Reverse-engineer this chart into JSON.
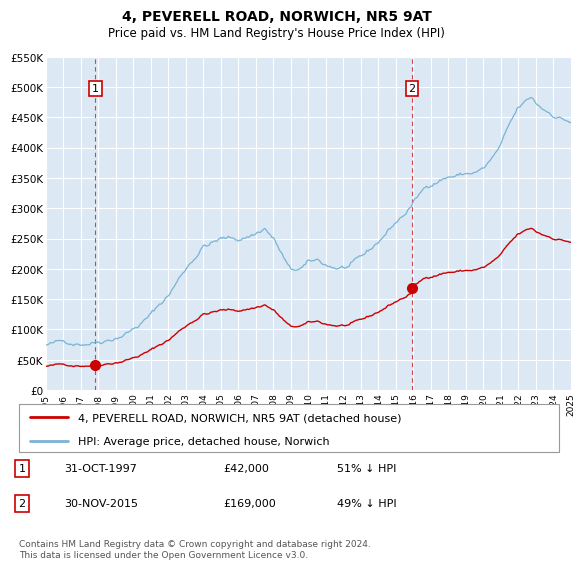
{
  "title": "4, PEVERELL ROAD, NORWICH, NR5 9AT",
  "subtitle": "Price paid vs. HM Land Registry's House Price Index (HPI)",
  "sale1_year": 1997.83,
  "sale1_price": 42000,
  "sale2_year": 2015.92,
  "sale2_price": 169000,
  "vline1_year": 1997.83,
  "vline2_year": 2015.92,
  "hpi_color": "#7ab3d4",
  "sale_color": "#cc0000",
  "vline_color": "#cc0000",
  "plot_bg": "#dce9f5",
  "grid_color": "#ffffff",
  "legend_label_sale": "4, PEVERELL ROAD, NORWICH, NR5 9AT (detached house)",
  "legend_label_hpi": "HPI: Average price, detached house, Norwich",
  "annotation1_label": "1",
  "annotation2_label": "2",
  "table_data": [
    {
      "num": "1",
      "date": "31-OCT-1997",
      "price": "£42,000",
      "note": "51% ↓ HPI"
    },
    {
      "num": "2",
      "date": "30-NOV-2015",
      "price": "£169,000",
      "note": "49% ↓ HPI"
    }
  ],
  "footer": "Contains HM Land Registry data © Crown copyright and database right 2024.\nThis data is licensed under the Open Government Licence v3.0.",
  "ylim": [
    0,
    550000
  ],
  "xlim": [
    1995,
    2025
  ],
  "yticks": [
    0,
    50000,
    100000,
    150000,
    200000,
    250000,
    300000,
    350000,
    400000,
    450000,
    500000,
    550000
  ],
  "ytick_labels": [
    "£0",
    "£50K",
    "£100K",
    "£150K",
    "£200K",
    "£250K",
    "£300K",
    "£350K",
    "£400K",
    "£450K",
    "£500K",
    "£550K"
  ],
  "xticks": [
    1995,
    1996,
    1997,
    1998,
    1999,
    2000,
    2001,
    2002,
    2003,
    2004,
    2005,
    2006,
    2007,
    2008,
    2009,
    2010,
    2011,
    2012,
    2013,
    2014,
    2015,
    2016,
    2017,
    2018,
    2019,
    2020,
    2021,
    2022,
    2023,
    2024,
    2025
  ]
}
